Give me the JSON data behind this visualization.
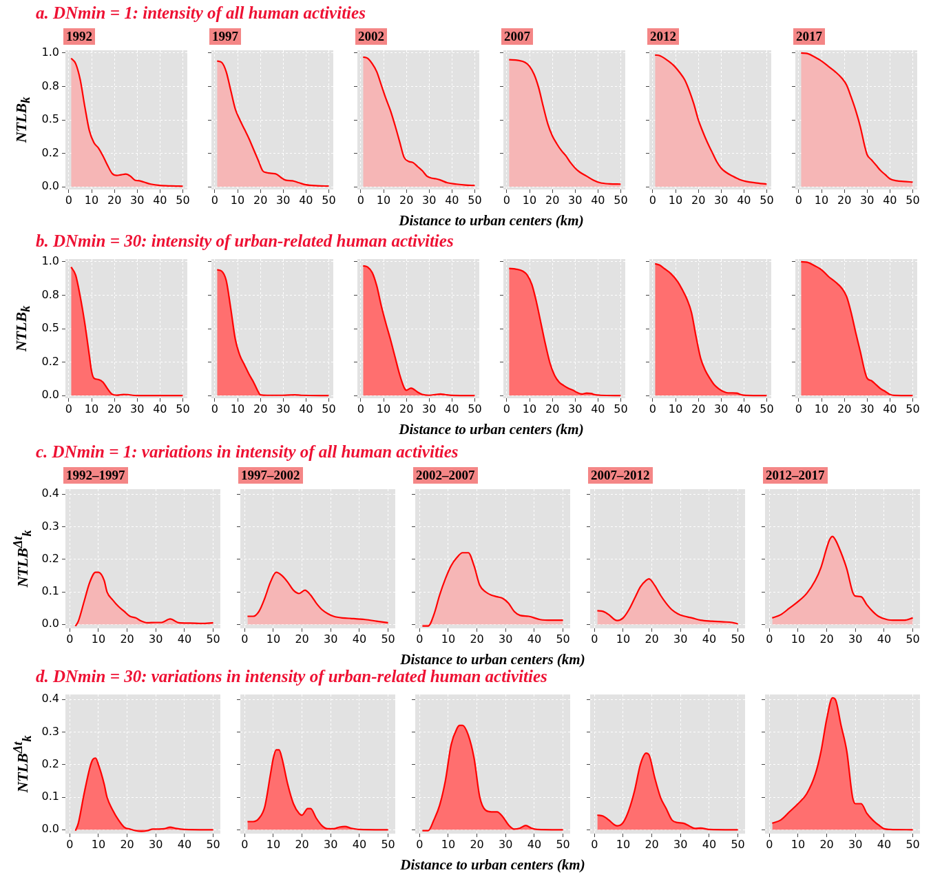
{
  "chart_data": [
    {
      "type": "area",
      "title": "1992",
      "annotations": [
        "a. DNmin = 1: intensity of all human activities"
      ],
      "ylabel": "NTLB$_{k}$",
      "color": "#f6b6b6",
      "grid": true,
      "xlim": [
        -1.5,
        52
      ],
      "xticks": [
        0,
        10,
        20,
        30,
        40,
        50
      ],
      "ylim": [
        -0.02,
        1.02
      ],
      "yticks": [
        {
          "value": 0,
          "label": "0.0"
        },
        {
          "value": 0.25,
          "label": "0.2"
        },
        {
          "value": 0.5,
          "label": "0.5"
        },
        {
          "value": 0.75,
          "label": "0.8"
        },
        {
          "value": 1,
          "label": "1.0"
        }
      ],
      "x": [
        1,
        3,
        5,
        7,
        9,
        11,
        13,
        15,
        17,
        19,
        21,
        23,
        25,
        27,
        29,
        31,
        33,
        36,
        40,
        45,
        50
      ],
      "values": [
        0.96,
        0.92,
        0.8,
        0.6,
        0.42,
        0.33,
        0.29,
        0.23,
        0.16,
        0.1,
        0.085,
        0.09,
        0.095,
        0.08,
        0.05,
        0.045,
        0.035,
        0.02,
        0.01,
        0.006,
        0.004
      ]
    },
    {
      "type": "area",
      "title": "1997",
      "color": "#f6b6b6",
      "grid": true,
      "tick_labels": "x",
      "xlim": [
        -1.5,
        52
      ],
      "xticks": [
        0,
        10,
        20,
        30,
        40,
        50
      ],
      "ylim": [
        -0.02,
        1.02
      ],
      "yticks": [
        0,
        0.25,
        0.5,
        0.75,
        1
      ],
      "x": [
        1,
        3,
        5,
        7,
        9,
        11,
        13,
        15,
        17,
        19,
        21,
        23,
        25,
        27,
        29,
        31,
        34,
        37,
        40,
        45,
        50
      ],
      "values": [
        0.94,
        0.93,
        0.86,
        0.72,
        0.58,
        0.5,
        0.43,
        0.36,
        0.28,
        0.2,
        0.12,
        0.105,
        0.1,
        0.095,
        0.07,
        0.05,
        0.045,
        0.03,
        0.015,
        0.008,
        0.005
      ]
    },
    {
      "type": "area",
      "title": "2002",
      "xlabel": "Distance to urban centers (km)",
      "color": "#f6b6b6",
      "grid": true,
      "tick_labels": "x",
      "xlim": [
        -1.5,
        52
      ],
      "xticks": [
        0,
        10,
        20,
        30,
        40,
        50
      ],
      "ylim": [
        -0.02,
        1.02
      ],
      "yticks": [
        0,
        0.25,
        0.5,
        0.75,
        1
      ],
      "x": [
        1,
        3,
        5,
        7,
        9,
        11,
        13,
        15,
        17,
        19,
        21,
        23,
        25,
        27,
        29,
        31,
        33,
        35,
        38,
        42,
        46,
        50
      ],
      "values": [
        0.97,
        0.96,
        0.92,
        0.86,
        0.76,
        0.66,
        0.57,
        0.46,
        0.34,
        0.22,
        0.19,
        0.18,
        0.15,
        0.12,
        0.08,
        0.065,
        0.06,
        0.05,
        0.03,
        0.02,
        0.013,
        0.01
      ]
    },
    {
      "type": "area",
      "title": "2007",
      "color": "#f6b6b6",
      "grid": true,
      "tick_labels": "x",
      "xlim": [
        -1.5,
        52
      ],
      "xticks": [
        0,
        10,
        20,
        30,
        40,
        50
      ],
      "ylim": [
        -0.02,
        1.02
      ],
      "yticks": [
        0,
        0.25,
        0.5,
        0.75,
        1
      ],
      "x": [
        1,
        5,
        8,
        10,
        12,
        14,
        16,
        18,
        20,
        22,
        24,
        26,
        28,
        30,
        32,
        35,
        38,
        41,
        45,
        50
      ],
      "values": [
        0.95,
        0.945,
        0.93,
        0.9,
        0.84,
        0.74,
        0.6,
        0.47,
        0.38,
        0.32,
        0.27,
        0.23,
        0.18,
        0.14,
        0.11,
        0.08,
        0.05,
        0.03,
        0.022,
        0.02
      ]
    },
    {
      "type": "area",
      "title": "2012",
      "color": "#f6b6b6",
      "grid": true,
      "tick_labels": "x",
      "xlim": [
        -1.5,
        52
      ],
      "xticks": [
        0,
        10,
        20,
        30,
        40,
        50
      ],
      "ylim": [
        -0.02,
        1.02
      ],
      "yticks": [
        0,
        0.25,
        0.5,
        0.75,
        1
      ],
      "x": [
        1,
        3,
        6,
        9,
        12,
        14,
        16,
        18,
        20,
        22,
        24,
        26,
        28,
        30,
        32,
        35,
        38,
        41,
        45,
        50
      ],
      "values": [
        0.985,
        0.98,
        0.95,
        0.91,
        0.85,
        0.8,
        0.72,
        0.62,
        0.5,
        0.41,
        0.33,
        0.26,
        0.19,
        0.14,
        0.11,
        0.08,
        0.055,
        0.04,
        0.03,
        0.02
      ]
    },
    {
      "type": "area",
      "title": "2017",
      "color": "#f6b6b6",
      "grid": true,
      "tick_labels": "x",
      "xlim": [
        -1.5,
        52
      ],
      "xticks": [
        0,
        10,
        20,
        30,
        40,
        50
      ],
      "ylim": [
        -0.02,
        1.02
      ],
      "yticks": [
        0,
        0.25,
        0.5,
        0.75,
        1
      ],
      "x": [
        1,
        4,
        7,
        10,
        13,
        16,
        19,
        21,
        23,
        25,
        27,
        29,
        30,
        32,
        34,
        36,
        38,
        40,
        43,
        46,
        50
      ],
      "values": [
        1.0,
        0.995,
        0.97,
        0.94,
        0.9,
        0.86,
        0.81,
        0.76,
        0.67,
        0.57,
        0.45,
        0.3,
        0.24,
        0.2,
        0.16,
        0.12,
        0.09,
        0.06,
        0.045,
        0.04,
        0.035
      ]
    },
    {
      "type": "area",
      "annotations": [
        "b. DNmin = 30: intensity of urban-related human activities"
      ],
      "ylabel": "NTLB$_{k}$",
      "color": "#ff6f6f",
      "grid": true,
      "xlim": [
        -1.5,
        52
      ],
      "xticks": [
        0,
        10,
        20,
        30,
        40,
        50
      ],
      "ylim": [
        -0.02,
        1.02
      ],
      "yticks": [
        {
          "value": 0,
          "label": "0.0"
        },
        {
          "value": 0.25,
          "label": "0.2"
        },
        {
          "value": 0.5,
          "label": "0.5"
        },
        {
          "value": 0.75,
          "label": "0.8"
        },
        {
          "value": 1,
          "label": "1.0"
        }
      ],
      "x": [
        1,
        3,
        5,
        7,
        9,
        10,
        11,
        13,
        15,
        17,
        19,
        21,
        24,
        26,
        28,
        30,
        50
      ],
      "values": [
        0.96,
        0.9,
        0.74,
        0.54,
        0.3,
        0.18,
        0.13,
        0.12,
        0.1,
        0.05,
        0.01,
        0.003,
        0.008,
        0.007,
        0.002,
        0,
        0
      ]
    },
    {
      "type": "area",
      "color": "#ff6f6f",
      "grid": true,
      "tick_labels": "x",
      "xlim": [
        -1.5,
        52
      ],
      "xticks": [
        0,
        10,
        20,
        30,
        40,
        50
      ],
      "ylim": [
        -0.02,
        1.02
      ],
      "yticks": [
        0,
        0.25,
        0.5,
        0.75,
        1
      ],
      "x": [
        1,
        3,
        5,
        7,
        9,
        11,
        13,
        15,
        17,
        19,
        20,
        23,
        30,
        35,
        38,
        50
      ],
      "values": [
        0.94,
        0.93,
        0.86,
        0.65,
        0.42,
        0.3,
        0.23,
        0.16,
        0.1,
        0.03,
        0.005,
        0.002,
        0.002,
        0.005,
        0.002,
        0
      ]
    },
    {
      "type": "area",
      "xlabel": "Distance to urban centers (km)",
      "color": "#ff6f6f",
      "grid": true,
      "tick_labels": "x",
      "xlim": [
        -1.5,
        52
      ],
      "xticks": [
        0,
        10,
        20,
        30,
        40,
        50
      ],
      "ylim": [
        -0.02,
        1.02
      ],
      "yticks": [
        0,
        0.25,
        0.5,
        0.75,
        1
      ],
      "x": [
        1,
        3,
        5,
        7,
        9,
        11,
        13,
        15,
        17,
        19,
        20,
        22,
        23,
        25,
        27,
        30,
        33,
        35,
        37,
        40,
        50
      ],
      "values": [
        0.97,
        0.96,
        0.92,
        0.82,
        0.67,
        0.54,
        0.42,
        0.29,
        0.16,
        0.06,
        0.04,
        0.055,
        0.05,
        0.025,
        0.008,
        0.002,
        0.008,
        0.012,
        0.007,
        0.001,
        0
      ]
    },
    {
      "type": "area",
      "color": "#ff6f6f",
      "grid": true,
      "tick_labels": "x",
      "xlim": [
        -1.5,
        52
      ],
      "xticks": [
        0,
        10,
        20,
        30,
        40,
        50
      ],
      "ylim": [
        -0.02,
        1.02
      ],
      "yticks": [
        0,
        0.25,
        0.5,
        0.75,
        1
      ],
      "x": [
        1,
        4,
        7,
        9,
        11,
        13,
        15,
        17,
        19,
        21,
        23,
        25,
        27,
        29,
        31,
        33,
        35,
        37,
        39,
        41,
        50
      ],
      "values": [
        0.95,
        0.945,
        0.93,
        0.9,
        0.83,
        0.7,
        0.54,
        0.38,
        0.24,
        0.15,
        0.1,
        0.075,
        0.055,
        0.04,
        0.022,
        0.012,
        0.018,
        0.015,
        0.005,
        0.002,
        0
      ]
    },
    {
      "type": "area",
      "color": "#ff6f6f",
      "grid": true,
      "tick_labels": "x",
      "xlim": [
        -1.5,
        52
      ],
      "xticks": [
        0,
        10,
        20,
        30,
        40,
        50
      ],
      "ylim": [
        -0.02,
        1.02
      ],
      "yticks": [
        0,
        0.25,
        0.5,
        0.75,
        1
      ],
      "x": [
        1,
        3,
        5,
        8,
        11,
        13,
        15,
        17,
        19,
        21,
        23,
        25,
        27,
        29,
        31,
        33,
        35,
        37,
        39,
        41,
        50
      ],
      "values": [
        0.985,
        0.975,
        0.95,
        0.91,
        0.85,
        0.79,
        0.72,
        0.62,
        0.44,
        0.28,
        0.19,
        0.13,
        0.08,
        0.05,
        0.03,
        0.02,
        0.02,
        0.018,
        0.005,
        0.001,
        0
      ]
    },
    {
      "type": "area",
      "color": "#ff6f6f",
      "grid": true,
      "tick_labels": "x",
      "xlim": [
        -1.5,
        52
      ],
      "xticks": [
        0,
        10,
        20,
        30,
        40,
        50
      ],
      "ylim": [
        -0.02,
        1.02
      ],
      "yticks": [
        0,
        0.25,
        0.5,
        0.75,
        1
      ],
      "x": [
        1,
        4,
        7,
        10,
        13,
        16,
        19,
        21,
        23,
        25,
        27,
        29,
        30,
        32,
        34,
        36,
        38,
        40,
        42,
        50
      ],
      "values": [
        1.0,
        0.995,
        0.97,
        0.94,
        0.89,
        0.85,
        0.8,
        0.74,
        0.62,
        0.47,
        0.33,
        0.18,
        0.13,
        0.11,
        0.08,
        0.05,
        0.03,
        0.008,
        0.001,
        0
      ]
    },
    {
      "type": "area",
      "title": "1992–1997",
      "annotations": [
        "c. DNmin = 1: variations in intensity of all human activities"
      ],
      "ylabel": "NTLB$^{Δt}$$_{k}$",
      "color": "#f6b6b6",
      "grid": true,
      "xlim": [
        -1.5,
        52.5
      ],
      "xticks": [
        0,
        10,
        20,
        30,
        40,
        50
      ],
      "ylim": [
        -0.012,
        0.415
      ],
      "yticks": [
        {
          "value": 0,
          "label": "0.0"
        },
        {
          "value": 0.1,
          "label": "0.1"
        },
        {
          "value": 0.2,
          "label": "0.2"
        },
        {
          "value": 0.3,
          "label": "0.3"
        },
        {
          "value": 0.4,
          "label": "0.4"
        }
      ],
      "x": [
        2,
        3,
        5,
        7,
        9,
        10,
        12,
        13,
        15,
        17,
        19,
        21,
        23,
        25,
        27,
        30,
        32,
        35,
        36,
        38,
        42,
        46,
        50
      ],
      "values": [
        -0.005,
        0.01,
        0.07,
        0.13,
        0.16,
        0.16,
        0.135,
        0.1,
        0.075,
        0.055,
        0.04,
        0.025,
        0.02,
        0.01,
        0.005,
        0.006,
        0.006,
        0.017,
        0.014,
        0.005,
        0.004,
        0.003,
        0.005
      ]
    },
    {
      "type": "area",
      "title": "1997–2002",
      "color": "#f6b6b6",
      "grid": true,
      "tick_labels": "x",
      "xlim": [
        -1.5,
        52.5
      ],
      "xticks": [
        0,
        10,
        20,
        30,
        40,
        50
      ],
      "ylim": [
        -0.012,
        0.415
      ],
      "yticks": [
        0,
        0.1,
        0.2,
        0.3,
        0.4
      ],
      "x": [
        1,
        3,
        5,
        7,
        9,
        11,
        13,
        15,
        17,
        19,
        21,
        23,
        25,
        27,
        29,
        31,
        34,
        38,
        42,
        46,
        50
      ],
      "values": [
        0.025,
        0.025,
        0.04,
        0.08,
        0.13,
        0.16,
        0.15,
        0.13,
        0.105,
        0.095,
        0.105,
        0.09,
        0.065,
        0.045,
        0.033,
        0.025,
        0.02,
        0.018,
        0.015,
        0.01,
        0.005
      ]
    },
    {
      "type": "area",
      "title": "2002–2007",
      "xlabel": "Distance to urban centers (km)",
      "color": "#f6b6b6",
      "grid": true,
      "tick_labels": "x",
      "xlim": [
        -1.5,
        52.5
      ],
      "xticks": [
        0,
        10,
        20,
        30,
        40,
        50
      ],
      "ylim": [
        -0.012,
        0.415
      ],
      "yticks": [
        0,
        0.1,
        0.2,
        0.3,
        0.4
      ],
      "x": [
        1,
        3,
        5,
        7,
        9,
        11,
        13,
        15,
        17,
        19,
        21,
        23,
        25,
        27,
        29,
        31,
        33,
        35,
        38,
        42,
        46,
        50
      ],
      "values": [
        -0.005,
        -0.005,
        0.03,
        0.09,
        0.14,
        0.18,
        0.205,
        0.22,
        0.22,
        0.18,
        0.12,
        0.1,
        0.09,
        0.085,
        0.08,
        0.065,
        0.04,
        0.028,
        0.025,
        0.015,
        0.013,
        0.013
      ]
    },
    {
      "type": "area",
      "title": "2007–2012",
      "color": "#f6b6b6",
      "grid": true,
      "tick_labels": "x",
      "xlim": [
        -1.5,
        52.5
      ],
      "xticks": [
        0,
        10,
        20,
        30,
        40,
        50
      ],
      "ylim": [
        -0.012,
        0.415
      ],
      "yticks": [
        0,
        0.1,
        0.2,
        0.3,
        0.4
      ],
      "x": [
        1,
        3,
        5,
        7,
        8,
        10,
        12,
        14,
        16,
        18,
        19,
        21,
        23,
        25,
        27,
        29,
        31,
        34,
        37,
        41,
        45,
        48,
        50
      ],
      "values": [
        0.042,
        0.04,
        0.03,
        0.015,
        0.012,
        0.02,
        0.045,
        0.08,
        0.115,
        0.135,
        0.14,
        0.12,
        0.09,
        0.065,
        0.045,
        0.033,
        0.026,
        0.02,
        0.013,
        0.01,
        0.008,
        0.006,
        0.002
      ]
    },
    {
      "type": "area",
      "title": "2012–2017",
      "color": "#f6b6b6",
      "grid": true,
      "tick_labels": "x",
      "xlim": [
        -1.5,
        52.5
      ],
      "xticks": [
        0,
        10,
        20,
        30,
        40,
        50
      ],
      "ylim": [
        -0.012,
        0.415
      ],
      "yticks": [
        0,
        0.1,
        0.2,
        0.3,
        0.4
      ],
      "x": [
        1,
        4,
        7,
        10,
        13,
        16,
        18,
        20,
        21,
        22,
        23,
        25,
        27,
        29,
        30,
        32,
        34,
        36,
        38,
        41,
        44,
        47,
        50
      ],
      "values": [
        0.02,
        0.03,
        0.05,
        0.07,
        0.095,
        0.135,
        0.175,
        0.235,
        0.26,
        0.27,
        0.26,
        0.22,
        0.17,
        0.1,
        0.087,
        0.085,
        0.06,
        0.04,
        0.025,
        0.015,
        0.013,
        0.013,
        0.02
      ]
    },
    {
      "type": "area",
      "annotations": [
        "d. DNmin = 30: variations in intensity of urban-related human activities"
      ],
      "ylabel": "NTLB$^{Δt}$$_{k}$",
      "color": "#ff6f6f",
      "grid": true,
      "xlim": [
        -1.5,
        52.5
      ],
      "xticks": [
        0,
        10,
        20,
        30,
        40,
        50
      ],
      "ylim": [
        -0.012,
        0.415
      ],
      "yticks": [
        {
          "value": 0,
          "label": "0.0"
        },
        {
          "value": 0.1,
          "label": "0.1"
        },
        {
          "value": 0.2,
          "label": "0.2"
        },
        {
          "value": 0.3,
          "label": "0.3"
        },
        {
          "value": 0.4,
          "label": "0.4"
        }
      ],
      "x": [
        2,
        3,
        5,
        7,
        8,
        9,
        10,
        12,
        13,
        15,
        17,
        19,
        21,
        23,
        25,
        27,
        29,
        31,
        33,
        35,
        37,
        40,
        50
      ],
      "values": [
        -0.003,
        0.02,
        0.11,
        0.19,
        0.215,
        0.22,
        0.2,
        0.14,
        0.1,
        0.06,
        0.03,
        0.008,
        0.002,
        -0.003,
        -0.005,
        -0.003,
        0.002,
        0.002,
        0.003,
        0.008,
        0.004,
        0.001,
        0
      ]
    },
    {
      "type": "area",
      "color": "#ff6f6f",
      "grid": true,
      "tick_labels": "x",
      "xlim": [
        -1.5,
        52.5
      ],
      "xticks": [
        0,
        10,
        20,
        30,
        40,
        50
      ],
      "ylim": [
        -0.012,
        0.415
      ],
      "yticks": [
        0,
        0.1,
        0.2,
        0.3,
        0.4
      ],
      "x": [
        1,
        3,
        5,
        7,
        9,
        10,
        11,
        12,
        13,
        15,
        17,
        19,
        20,
        22,
        23,
        25,
        27,
        29,
        31,
        33,
        35,
        37,
        40,
        50
      ],
      "values": [
        0.025,
        0.025,
        0.035,
        0.07,
        0.17,
        0.22,
        0.245,
        0.245,
        0.22,
        0.14,
        0.08,
        0.05,
        0.045,
        0.065,
        0.065,
        0.035,
        0.012,
        0.003,
        0.003,
        0.008,
        0.01,
        0.005,
        0.001,
        0
      ]
    },
    {
      "type": "area",
      "xlabel": "Distance to urban centers (km)",
      "color": "#ff6f6f",
      "grid": true,
      "tick_labels": "x",
      "xlim": [
        -1.5,
        52.5
      ],
      "xticks": [
        0,
        10,
        20,
        30,
        40,
        50
      ],
      "ylim": [
        -0.012,
        0.415
      ],
      "yticks": [
        0,
        0.1,
        0.2,
        0.3,
        0.4
      ],
      "x": [
        1,
        3,
        5,
        7,
        9,
        11,
        13,
        14,
        15,
        17,
        19,
        21,
        23,
        25,
        27,
        29,
        31,
        33,
        35,
        37,
        39,
        41,
        50
      ],
      "values": [
        -0.003,
        -0.003,
        0.03,
        0.075,
        0.15,
        0.26,
        0.31,
        0.32,
        0.32,
        0.29,
        0.22,
        0.1,
        0.06,
        0.055,
        0.055,
        0.04,
        0.015,
        0.002,
        0.005,
        0.013,
        0.005,
        0.001,
        0
      ]
    },
    {
      "type": "area",
      "color": "#ff6f6f",
      "grid": true,
      "tick_labels": "x",
      "xlim": [
        -1.5,
        52.5
      ],
      "xticks": [
        0,
        10,
        20,
        30,
        40,
        50
      ],
      "ylim": [
        -0.012,
        0.415
      ],
      "yticks": [
        0,
        0.1,
        0.2,
        0.3,
        0.4
      ],
      "x": [
        1,
        3,
        5,
        7,
        8,
        10,
        12,
        14,
        16,
        18,
        19,
        21,
        23,
        25,
        27,
        29,
        31,
        33,
        35,
        37,
        40,
        50
      ],
      "values": [
        0.045,
        0.042,
        0.03,
        0.015,
        0.012,
        0.022,
        0.06,
        0.12,
        0.2,
        0.235,
        0.23,
        0.16,
        0.1,
        0.065,
        0.03,
        0.022,
        0.02,
        0.012,
        0.004,
        0.005,
        0.001,
        0
      ]
    },
    {
      "type": "area",
      "color": "#ff6f6f",
      "grid": true,
      "tick_labels": "x",
      "xlim": [
        -1.5,
        52.5
      ],
      "xticks": [
        0,
        10,
        20,
        30,
        40,
        50
      ],
      "ylim": [
        -0.012,
        0.415
      ],
      "yticks": [
        0,
        0.1,
        0.2,
        0.3,
        0.4
      ],
      "x": [
        1,
        4,
        7,
        10,
        13,
        16,
        18,
        20,
        22,
        23,
        25,
        27,
        29,
        30,
        32,
        34,
        36,
        38,
        40,
        42,
        50
      ],
      "values": [
        0.02,
        0.03,
        0.055,
        0.08,
        0.11,
        0.17,
        0.24,
        0.34,
        0.405,
        0.4,
        0.32,
        0.24,
        0.1,
        0.08,
        0.08,
        0.05,
        0.03,
        0.015,
        0.003,
        0.001,
        0
      ]
    }
  ]
}
